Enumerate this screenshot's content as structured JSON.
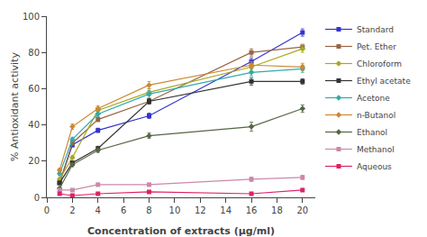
{
  "chart_data": {
    "type": "line",
    "xlabel": "Concentration of extracts (μg/ml)",
    "ylabel": "% Antioxidant activity",
    "x": [
      1,
      2,
      4,
      8,
      16,
      20
    ],
    "series": [
      {
        "name": "Standard",
        "color": "#3333cc",
        "marker": "square",
        "values": [
          8,
          29,
          37,
          45,
          75,
          91
        ],
        "yerr": [
          0.8,
          1.2,
          1.2,
          1.5,
          2.0,
          2.0
        ]
      },
      {
        "name": "Pet. Ether",
        "color": "#996644",
        "marker": "square",
        "values": [
          8,
          30,
          43,
          53,
          80,
          83
        ],
        "yerr": [
          0.8,
          1.2,
          1.2,
          1.5,
          2.0,
          1.5
        ]
      },
      {
        "name": "Chloroform",
        "color": "#aaa822",
        "marker": "diamond",
        "values": [
          10,
          22,
          48,
          58,
          72,
          82
        ],
        "yerr": [
          0.8,
          1.0,
          1.5,
          2.0,
          2.0,
          2.0
        ]
      },
      {
        "name": "Ethyl acetate",
        "color": "#333333",
        "marker": "square",
        "values": [
          8,
          19,
          27,
          53,
          64,
          64
        ],
        "yerr": [
          0.8,
          1.0,
          1.2,
          1.5,
          2.0,
          1.5
        ]
      },
      {
        "name": "Acetone",
        "color": "#33aaaa",
        "marker": "diamond",
        "values": [
          13,
          32,
          46,
          57,
          69,
          71
        ],
        "yerr": [
          1.0,
          1.2,
          1.5,
          2.0,
          2.0,
          2.0
        ]
      },
      {
        "name": "n-Butanol",
        "color": "#cc8833",
        "marker": "diamond",
        "values": [
          15,
          39,
          49,
          62,
          73,
          72
        ],
        "yerr": [
          1.0,
          1.5,
          1.5,
          2.0,
          2.0,
          2.0
        ]
      },
      {
        "name": "Ethanol",
        "color": "#556644",
        "marker": "diamond",
        "values": [
          5,
          18,
          26,
          34,
          39,
          49
        ],
        "yerr": [
          0.5,
          1.0,
          1.2,
          1.5,
          2.5,
          2.0
        ]
      },
      {
        "name": "Methanol",
        "color": "#cc88aa",
        "marker": "square",
        "values": [
          4,
          4,
          7,
          7,
          10,
          11
        ],
        "yerr": [
          0.5,
          0.5,
          0.8,
          0.8,
          1.2,
          1.2
        ]
      },
      {
        "name": "Aqueous",
        "color": "#dd2266",
        "marker": "square",
        "values": [
          2,
          1,
          2,
          3,
          2,
          4
        ],
        "yerr": [
          0.3,
          0.3,
          0.5,
          0.5,
          0.5,
          0.8
        ]
      }
    ],
    "xlim": [
      0,
      21
    ],
    "ylim": [
      0,
      100
    ],
    "xticks": [
      0,
      2,
      4,
      6,
      8,
      10,
      12,
      14,
      16,
      18,
      20
    ],
    "yticks": [
      0,
      20,
      40,
      60,
      80,
      100
    ],
    "grid": false,
    "legend": "right"
  }
}
